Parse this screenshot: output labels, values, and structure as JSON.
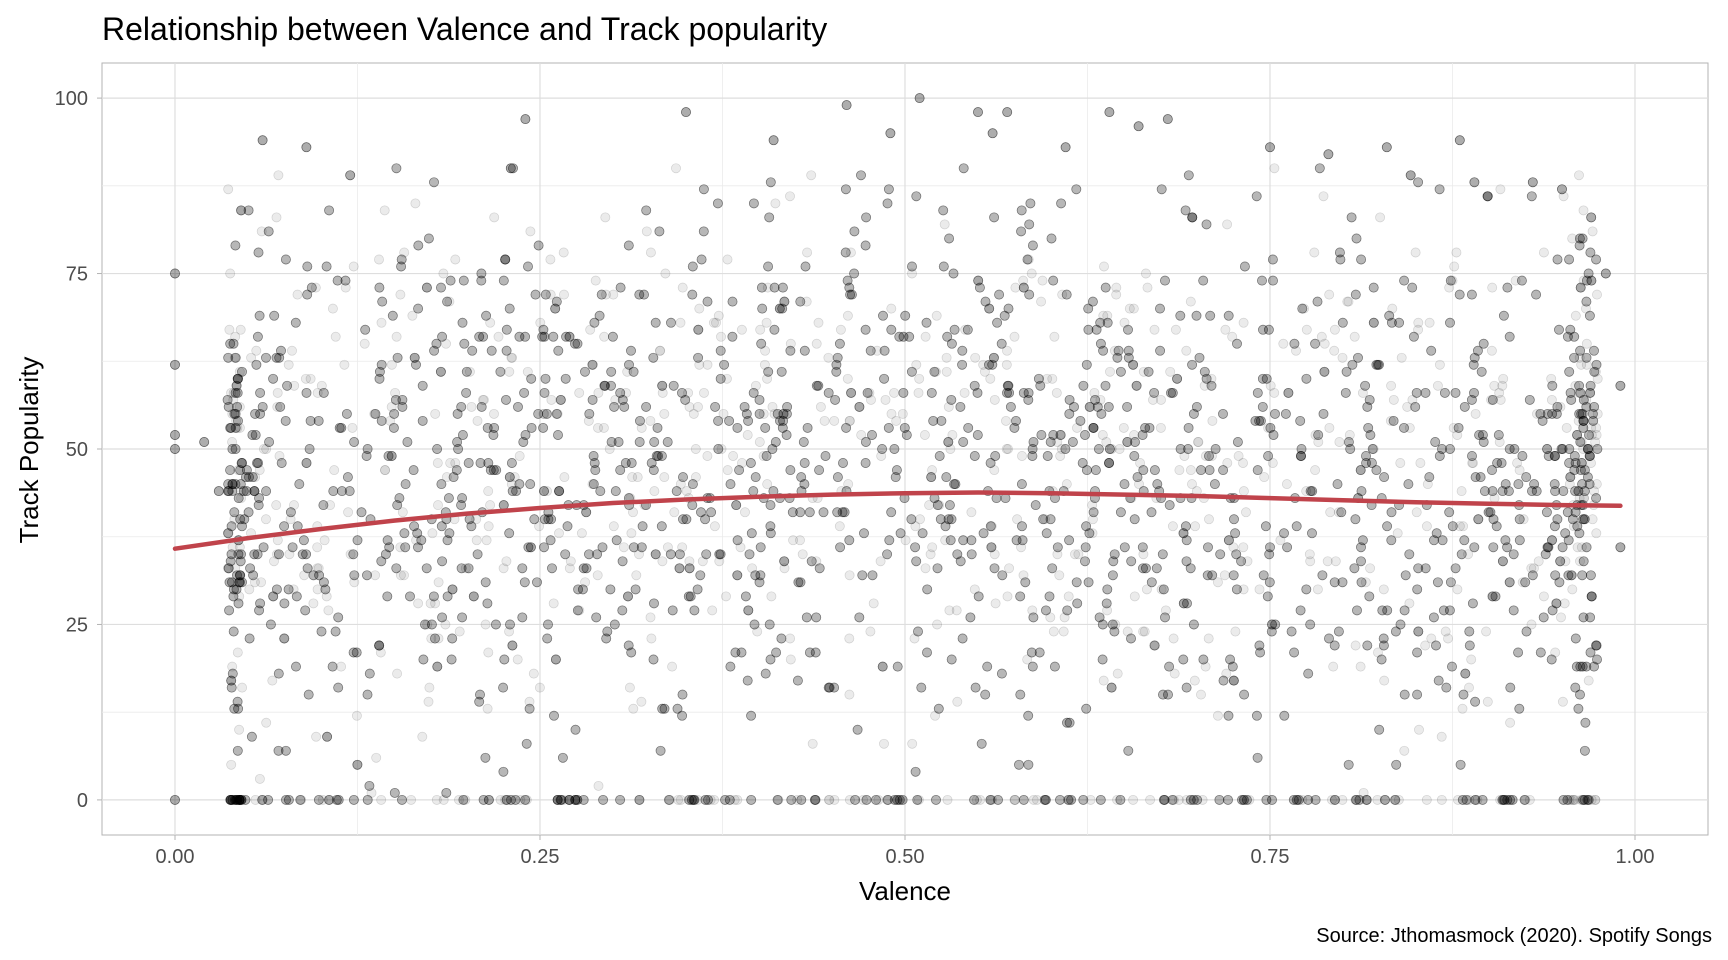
{
  "chart_data": {
    "type": "scatter",
    "title": "Relationship between Valence and Track popularity",
    "xlabel": "Valence",
    "ylabel": "Track Popularity",
    "caption": "Source: Jthomasmock (2020). Spotify Songs",
    "xlim": [
      -0.05,
      1.05
    ],
    "ylim": [
      -5,
      105
    ],
    "x_ticks": [
      0.0,
      0.25,
      0.5,
      0.75,
      1.0
    ],
    "x_tick_labels": [
      "0.00",
      "0.25",
      "0.50",
      "0.75",
      "1.00"
    ],
    "y_ticks": [
      0,
      25,
      50,
      75,
      100
    ],
    "y_tick_labels": [
      "0",
      "25",
      "50",
      "75",
      "100"
    ],
    "grid": true,
    "legend": "none",
    "point_color": "#000000",
    "point_alpha": 0.08,
    "smooth_color": "#c0434b",
    "series": [
      {
        "kind": "points",
        "points": [
          [
            0.06,
            94
          ],
          [
            0.09,
            93
          ],
          [
            0.12,
            89
          ],
          [
            0.24,
            97
          ],
          [
            0.23,
            90
          ],
          [
            0.35,
            98
          ],
          [
            0.41,
            94
          ],
          [
            0.46,
            99
          ],
          [
            0.49,
            95
          ],
          [
            0.51,
            100
          ],
          [
            0.55,
            98
          ],
          [
            0.57,
            98
          ],
          [
            0.56,
            95
          ],
          [
            0.64,
            98
          ],
          [
            0.66,
            96
          ],
          [
            0.68,
            97
          ],
          [
            0.61,
            93
          ],
          [
            0.75,
            93
          ],
          [
            0.79,
            92
          ],
          [
            0.83,
            93
          ],
          [
            0.88,
            94
          ],
          [
            0.89,
            88
          ],
          [
            0.93,
            88
          ],
          [
            0.95,
            87
          ],
          [
            0.97,
            83
          ],
          [
            0.98,
            75
          ],
          [
            0.0,
            75
          ],
          [
            0.0,
            62
          ],
          [
            0.0,
            52
          ],
          [
            0.0,
            50
          ],
          [
            0.0,
            0
          ],
          [
            0.99,
            59
          ],
          [
            0.99,
            36
          ],
          [
            0.02,
            51
          ],
          [
            0.03,
            44
          ]
        ]
      },
      {
        "kind": "smooth",
        "x": [
          0.0,
          0.05,
          0.1,
          0.15,
          0.2,
          0.25,
          0.3,
          0.35,
          0.4,
          0.45,
          0.5,
          0.55,
          0.6,
          0.65,
          0.7,
          0.75,
          0.8,
          0.85,
          0.9,
          0.95,
          0.99
        ],
        "y": [
          35.8,
          37.3,
          38.6,
          39.8,
          40.8,
          41.6,
          42.3,
          42.8,
          43.2,
          43.5,
          43.7,
          43.8,
          43.7,
          43.5,
          43.3,
          43.0,
          42.7,
          42.4,
          42.2,
          42.0,
          41.9
        ]
      }
    ]
  }
}
